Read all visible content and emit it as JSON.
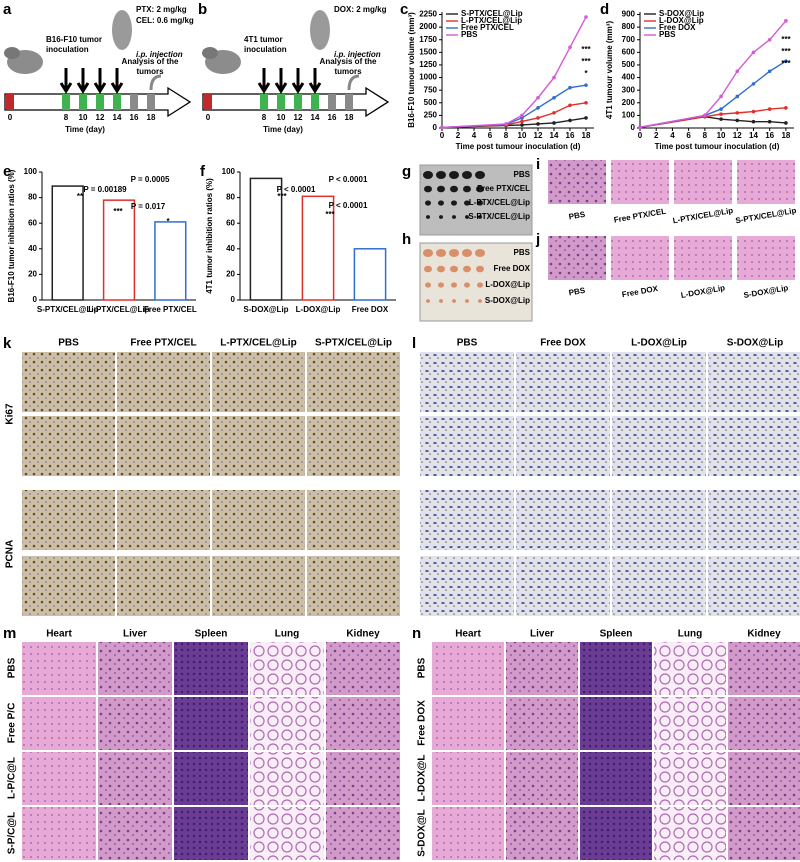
{
  "panel_labels": [
    "a",
    "b",
    "c",
    "d",
    "e",
    "f",
    "g",
    "h",
    "i",
    "j",
    "k",
    "l",
    "m",
    "n"
  ],
  "schemes": [
    {
      "doses": [
        "PTX: 2 mg/kg",
        "CEL: 0.6 mg/kg"
      ],
      "inoculation": [
        "B16-F10 tumor",
        "inoculation"
      ],
      "injection": "i.p. injection",
      "analysis": [
        "Analysis of the",
        "tumors"
      ],
      "days": [
        0,
        8,
        10,
        12,
        14,
        16,
        18
      ],
      "axis_label": "Time (day)"
    },
    {
      "doses": [
        "DOX: 2 mg/kg"
      ],
      "inoculation": [
        "4T1 tumor",
        "inoculation"
      ],
      "injection": "i.p. injection",
      "analysis": [
        "Analysis of the",
        "tumors"
      ],
      "days": [
        0,
        8,
        10,
        12,
        14,
        16,
        18
      ],
      "axis_label": "Time (day)"
    }
  ],
  "chart_data": [
    {
      "type": "line",
      "xlabel": "Time post tumour inoculation (d)",
      "ylabel": "B16-F10 tumour volume (mm³)",
      "x": [
        0,
        8,
        10,
        12,
        14,
        16,
        18
      ],
      "xlim": [
        0,
        19
      ],
      "xticks": [
        0,
        2,
        4,
        6,
        8,
        10,
        12,
        14,
        16,
        18
      ],
      "ylim": [
        0,
        2300
      ],
      "yticks": [
        0,
        250,
        500,
        750,
        1000,
        1250,
        1500,
        1750,
        2000,
        2250
      ],
      "series": [
        {
          "name": "S-PTX/CEL@Lip",
          "color": "#222222",
          "values": [
            10,
            50,
            60,
            80,
            100,
            150,
            200
          ]
        },
        {
          "name": "L-PTX/CEL@Lip",
          "color": "#e0302a",
          "values": [
            10,
            60,
            130,
            200,
            300,
            450,
            500
          ]
        },
        {
          "name": "Free PTX/CEL",
          "color": "#2f6fd0",
          "values": [
            10,
            70,
            200,
            400,
            600,
            800,
            850
          ]
        },
        {
          "name": "PBS",
          "color": "#d45ad6",
          "values": [
            10,
            80,
            250,
            600,
            1000,
            1600,
            2200
          ]
        }
      ],
      "annotations": [
        "***",
        "***",
        "*"
      ]
    },
    {
      "type": "line",
      "xlabel": "Time post tumour inoculation (d)",
      "ylabel": "4T1 tumour volume (mm³)",
      "x": [
        0,
        8,
        10,
        12,
        14,
        16,
        18
      ],
      "xlim": [
        0,
        19
      ],
      "xticks": [
        0,
        2,
        4,
        6,
        8,
        10,
        12,
        14,
        16,
        18
      ],
      "ylim": [
        0,
        920
      ],
      "yticks": [
        0,
        100,
        200,
        300,
        400,
        500,
        600,
        700,
        800,
        900
      ],
      "series": [
        {
          "name": "S-DOX@Lip",
          "color": "#222222",
          "values": [
            5,
            90,
            70,
            60,
            50,
            50,
            40
          ]
        },
        {
          "name": "L-DOX@Lip",
          "color": "#e0302a",
          "values": [
            5,
            90,
            110,
            120,
            130,
            150,
            160
          ]
        },
        {
          "name": "Free DOX",
          "color": "#2f6fd0",
          "values": [
            5,
            100,
            150,
            250,
            350,
            450,
            530
          ]
        },
        {
          "name": "PBS",
          "color": "#d45ad6",
          "values": [
            5,
            100,
            250,
            450,
            600,
            700,
            850
          ]
        }
      ],
      "annotations": [
        "***",
        "***",
        "***"
      ]
    },
    {
      "type": "bar",
      "ylabel": "B16-F10 tumor inhibition ratios (%)",
      "categories": [
        "S-PTX/CEL@Lip",
        "L-PTX/CEL@Lip",
        "Free PTX/CEL"
      ],
      "values": [
        89,
        78,
        61
      ],
      "colors": [
        "#222222",
        "#e0302a",
        "#2f6fd0"
      ],
      "ylim": [
        0,
        100
      ],
      "yticks": [
        0,
        20,
        40,
        60,
        80,
        100
      ],
      "annotations": [
        "P = 0.00189",
        "P = 0.0005",
        "P = 0.017",
        "**",
        "***",
        "*"
      ]
    },
    {
      "type": "bar",
      "ylabel": "4T1 tumor inhibition ratios (%)",
      "categories": [
        "S-DOX@Lip",
        "L-DOX@Lip",
        "Free DOX"
      ],
      "values": [
        95,
        81,
        40
      ],
      "colors": [
        "#222222",
        "#e0302a",
        "#2f6fd0"
      ],
      "ylim": [
        0,
        100
      ],
      "yticks": [
        0,
        20,
        40,
        60,
        80,
        100
      ],
      "annotations": [
        "P < 0.0001",
        "P < 0.0001",
        "P < 0.0001",
        "***",
        "***"
      ]
    }
  ],
  "photos": [
    {
      "labels": [
        "PBS",
        "Free PTX/CEL",
        "L-PTX/CEL@Lip",
        "S-PTX/CEL@Lip"
      ]
    },
    {
      "labels": [
        "PBS",
        "Free DOX",
        "L-DOX@Lip",
        "S-DOX@Lip"
      ]
    }
  ],
  "he_images": [
    {
      "labels": [
        "PBS",
        "Free PTX/CEL",
        "L-PTX/CEL@Lip",
        "S-PTX/CEL@Lip"
      ]
    },
    {
      "labels": [
        "PBS",
        "Free DOX",
        "L-DOX@Lip",
        "S-DOX@Lip"
      ]
    }
  ],
  "ihc": [
    {
      "columns": [
        "PBS",
        "Free PTX/CEL",
        "L-PTX/CEL@Lip",
        "S-PTX/CEL@Lip"
      ],
      "rows": [
        "Ki67",
        "PCNA"
      ]
    },
    {
      "columns": [
        "PBS",
        "Free DOX",
        "L-DOX@Lip",
        "S-DOX@Lip"
      ]
    }
  ],
  "organs": [
    {
      "columns": [
        "Heart",
        "Liver",
        "Spleen",
        "Lung",
        "Kidney"
      ],
      "rows": [
        "PBS",
        "Free P/C",
        "L-P/C@L",
        "S-P/C@L"
      ]
    },
    {
      "columns": [
        "Heart",
        "Liver",
        "Spleen",
        "Lung",
        "Kidney"
      ],
      "rows": [
        "PBS",
        "Free DOX",
        "L-DOX@L",
        "S-DOX@L"
      ]
    }
  ]
}
